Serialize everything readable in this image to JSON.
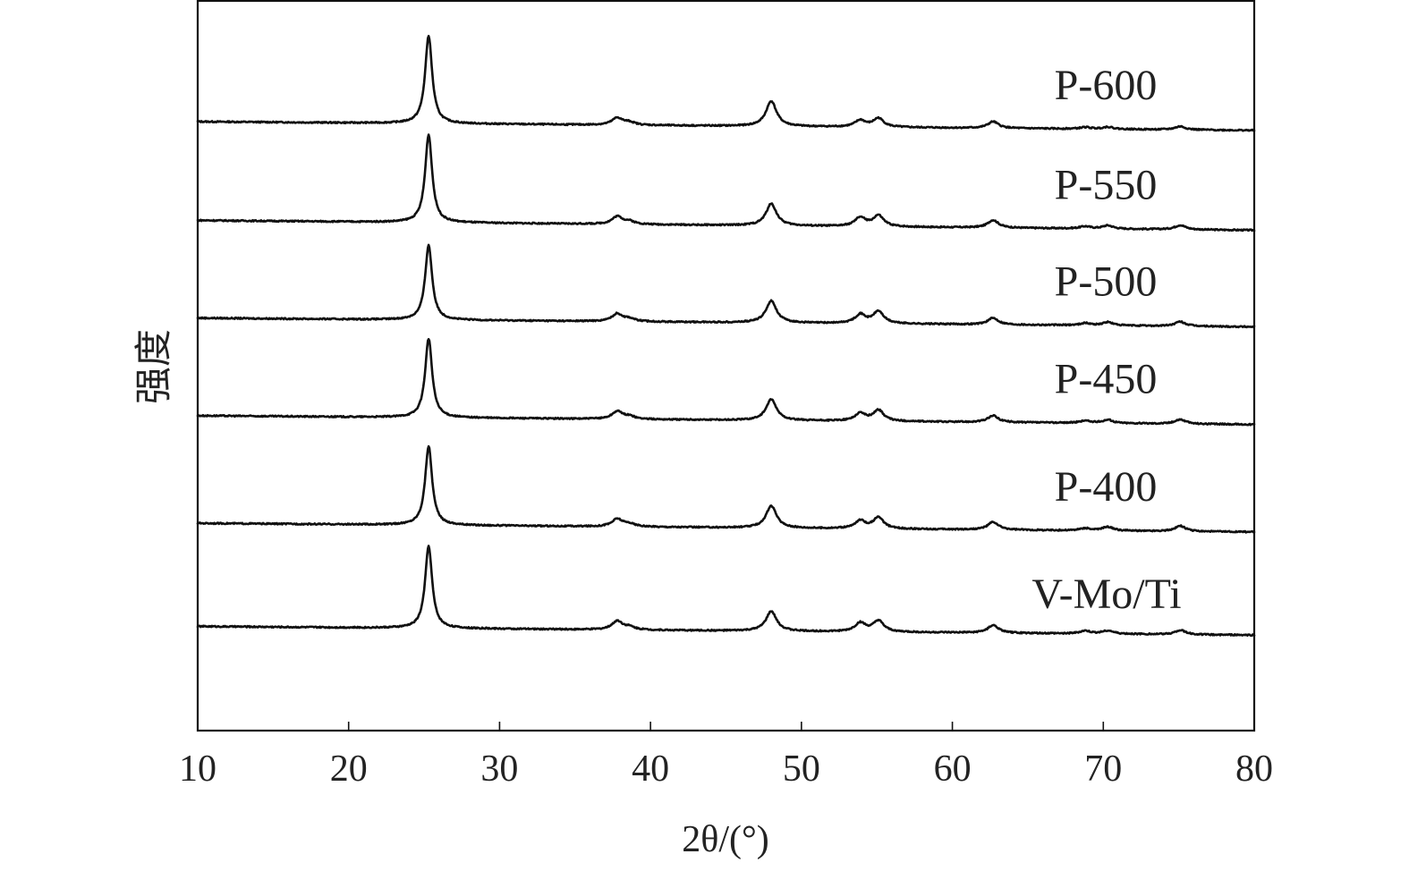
{
  "chart_data": {
    "type": "line",
    "title": "",
    "xlabel": "2θ/(°)",
    "ylabel": "强度",
    "xlim": [
      10,
      80
    ],
    "x_ticks": [
      10,
      20,
      30,
      40,
      50,
      60,
      70,
      80
    ],
    "x_tick_labels": [
      "10",
      "20",
      "30",
      "40",
      "50",
      "60",
      "70",
      "80"
    ],
    "y_ticks_shown": false,
    "grid": false,
    "legend": "inline labels at right of each curve",
    "peak_positions_2theta": [
      25.3,
      37.8,
      38.6,
      48.0,
      53.9,
      55.1,
      62.7,
      68.8,
      70.3,
      75.1
    ],
    "series": [
      {
        "name": "P-600",
        "baseline_start": 2.95,
        "baseline_end": 2.87,
        "peaks": [
          [
            25.3,
            0.8
          ],
          [
            37.8,
            0.065
          ],
          [
            38.6,
            0.025
          ],
          [
            48.0,
            0.23
          ],
          [
            53.9,
            0.06
          ],
          [
            55.1,
            0.08
          ],
          [
            62.7,
            0.06
          ],
          [
            68.8,
            0.015
          ],
          [
            70.3,
            0.02
          ],
          [
            75.1,
            0.03
          ]
        ]
      },
      {
        "name": "P-550",
        "baseline_start": 2.05,
        "baseline_end": 1.96,
        "peaks": [
          [
            25.3,
            0.8
          ],
          [
            37.8,
            0.07
          ],
          [
            38.6,
            0.025
          ],
          [
            48.0,
            0.2
          ],
          [
            53.9,
            0.08
          ],
          [
            55.1,
            0.1
          ],
          [
            62.7,
            0.07
          ],
          [
            68.8,
            0.02
          ],
          [
            70.3,
            0.03
          ],
          [
            75.1,
            0.04
          ]
        ]
      },
      {
        "name": "P-500",
        "baseline_start": 1.16,
        "baseline_end": 1.08,
        "peaks": [
          [
            25.3,
            0.68
          ],
          [
            37.8,
            0.07
          ],
          [
            38.6,
            0.025
          ],
          [
            48.0,
            0.2
          ],
          [
            53.9,
            0.08
          ],
          [
            55.1,
            0.11
          ],
          [
            62.7,
            0.06
          ],
          [
            68.8,
            0.02
          ],
          [
            70.3,
            0.03
          ],
          [
            75.1,
            0.04
          ]
        ]
      },
      {
        "name": "P-450",
        "baseline_start": 0.27,
        "baseline_end": 0.19,
        "peaks": [
          [
            25.3,
            0.72
          ],
          [
            37.8,
            0.07
          ],
          [
            38.6,
            0.025
          ],
          [
            48.0,
            0.19
          ],
          [
            53.9,
            0.07
          ],
          [
            55.1,
            0.1
          ],
          [
            62.7,
            0.06
          ],
          [
            68.8,
            0.02
          ],
          [
            70.3,
            0.03
          ],
          [
            75.1,
            0.04
          ]
        ]
      },
      {
        "name": "P-400",
        "baseline_start": -0.71,
        "baseline_end": -0.79,
        "peaks": [
          [
            25.3,
            0.72
          ],
          [
            37.8,
            0.07
          ],
          [
            38.6,
            0.025
          ],
          [
            48.0,
            0.2
          ],
          [
            53.9,
            0.07
          ],
          [
            55.1,
            0.1
          ],
          [
            62.7,
            0.07
          ],
          [
            68.8,
            0.02
          ],
          [
            70.3,
            0.035
          ],
          [
            75.1,
            0.05
          ]
        ]
      },
      {
        "name": "V-Mo/Ti",
        "baseline_start": -1.65,
        "baseline_end": -1.73,
        "peaks": [
          [
            25.3,
            0.75
          ],
          [
            37.8,
            0.08
          ],
          [
            38.6,
            0.025
          ],
          [
            48.0,
            0.18
          ],
          [
            53.9,
            0.08
          ],
          [
            55.1,
            0.1
          ],
          [
            62.7,
            0.07
          ],
          [
            68.8,
            0.025
          ],
          [
            70.3,
            0.03
          ],
          [
            75.1,
            0.04
          ]
        ]
      }
    ],
    "ylim": [
      -2.6,
      4.05
    ]
  }
}
